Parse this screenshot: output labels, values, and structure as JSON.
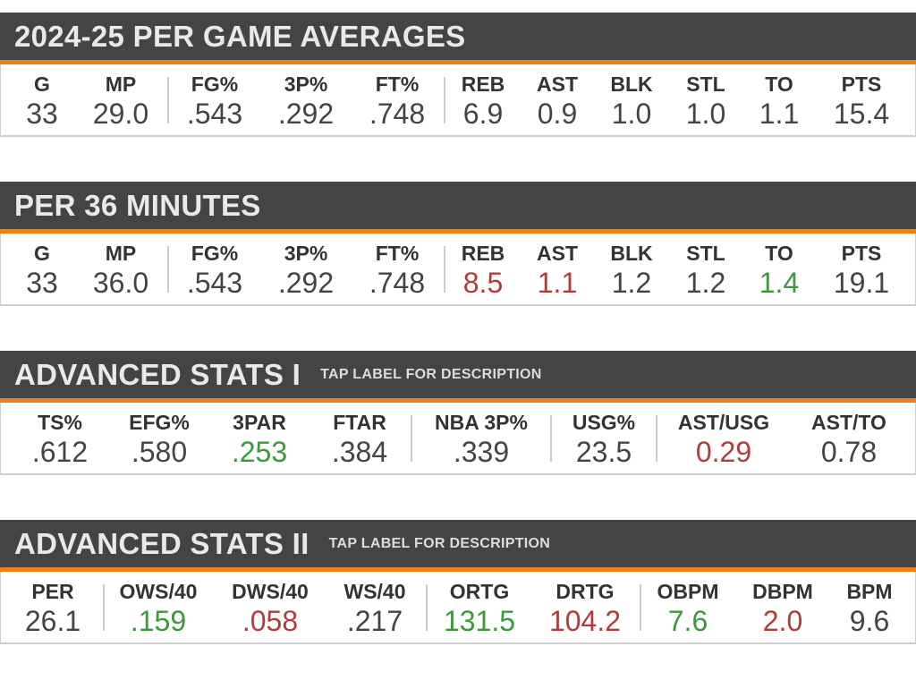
{
  "colors": {
    "header_bg": "#444444",
    "accent": "#e8821c",
    "neutral": "#444444",
    "good": "#3a9a3a",
    "bad": "#b53a3a"
  },
  "sections": [
    {
      "title": "2024-25 PER GAME AVERAGES",
      "subtitle": "",
      "stats": [
        {
          "label": "G",
          "value": "33",
          "tone": "neutral"
        },
        {
          "label": "MP",
          "value": "29.0",
          "tone": "neutral"
        },
        {
          "label": "FG%",
          "value": ".543",
          "tone": "neutral"
        },
        {
          "label": "3P%",
          "value": ".292",
          "tone": "neutral"
        },
        {
          "label": "FT%",
          "value": ".748",
          "tone": "neutral"
        },
        {
          "label": "REB",
          "value": "6.9",
          "tone": "neutral"
        },
        {
          "label": "AST",
          "value": "0.9",
          "tone": "neutral"
        },
        {
          "label": "BLK",
          "value": "1.0",
          "tone": "neutral"
        },
        {
          "label": "STL",
          "value": "1.0",
          "tone": "neutral"
        },
        {
          "label": "TO",
          "value": "1.1",
          "tone": "neutral"
        },
        {
          "label": "PTS",
          "value": "15.4",
          "tone": "neutral"
        }
      ]
    },
    {
      "title": "PER 36 MINUTES",
      "subtitle": "",
      "stats": [
        {
          "label": "G",
          "value": "33",
          "tone": "neutral"
        },
        {
          "label": "MP",
          "value": "36.0",
          "tone": "neutral"
        },
        {
          "label": "FG%",
          "value": ".543",
          "tone": "neutral"
        },
        {
          "label": "3P%",
          "value": ".292",
          "tone": "neutral"
        },
        {
          "label": "FT%",
          "value": ".748",
          "tone": "neutral"
        },
        {
          "label": "REB",
          "value": "8.5",
          "tone": "bad"
        },
        {
          "label": "AST",
          "value": "1.1",
          "tone": "bad"
        },
        {
          "label": "BLK",
          "value": "1.2",
          "tone": "neutral"
        },
        {
          "label": "STL",
          "value": "1.2",
          "tone": "neutral"
        },
        {
          "label": "TO",
          "value": "1.4",
          "tone": "good"
        },
        {
          "label": "PTS",
          "value": "19.1",
          "tone": "neutral"
        }
      ]
    },
    {
      "title": "ADVANCED STATS I",
      "subtitle": "TAP LABEL FOR DESCRIPTION",
      "stats": [
        {
          "label": "TS%",
          "value": ".612",
          "tone": "neutral"
        },
        {
          "label": "EFG%",
          "value": ".580",
          "tone": "neutral"
        },
        {
          "label": "3PAR",
          "value": ".253",
          "tone": "good"
        },
        {
          "label": "FTAR",
          "value": ".384",
          "tone": "neutral"
        },
        {
          "label": "NBA 3P%",
          "value": ".339",
          "tone": "neutral"
        },
        {
          "label": "USG%",
          "value": "23.5",
          "tone": "neutral"
        },
        {
          "label": "AST/USG",
          "value": "0.29",
          "tone": "bad"
        },
        {
          "label": "AST/TO",
          "value": "0.78",
          "tone": "neutral"
        }
      ]
    },
    {
      "title": "ADVANCED STATS II",
      "subtitle": "TAP LABEL FOR DESCRIPTION",
      "stats": [
        {
          "label": "PER",
          "value": "26.1",
          "tone": "neutral"
        },
        {
          "label": "OWS/40",
          "value": ".159",
          "tone": "good"
        },
        {
          "label": "DWS/40",
          "value": ".058",
          "tone": "bad"
        },
        {
          "label": "WS/40",
          "value": ".217",
          "tone": "neutral"
        },
        {
          "label": "ORTG",
          "value": "131.5",
          "tone": "good"
        },
        {
          "label": "DRTG",
          "value": "104.2",
          "tone": "bad"
        },
        {
          "label": "OBPM",
          "value": "7.6",
          "tone": "good"
        },
        {
          "label": "DBPM",
          "value": "2.0",
          "tone": "bad"
        },
        {
          "label": "BPM",
          "value": "9.6",
          "tone": "neutral"
        }
      ]
    }
  ]
}
